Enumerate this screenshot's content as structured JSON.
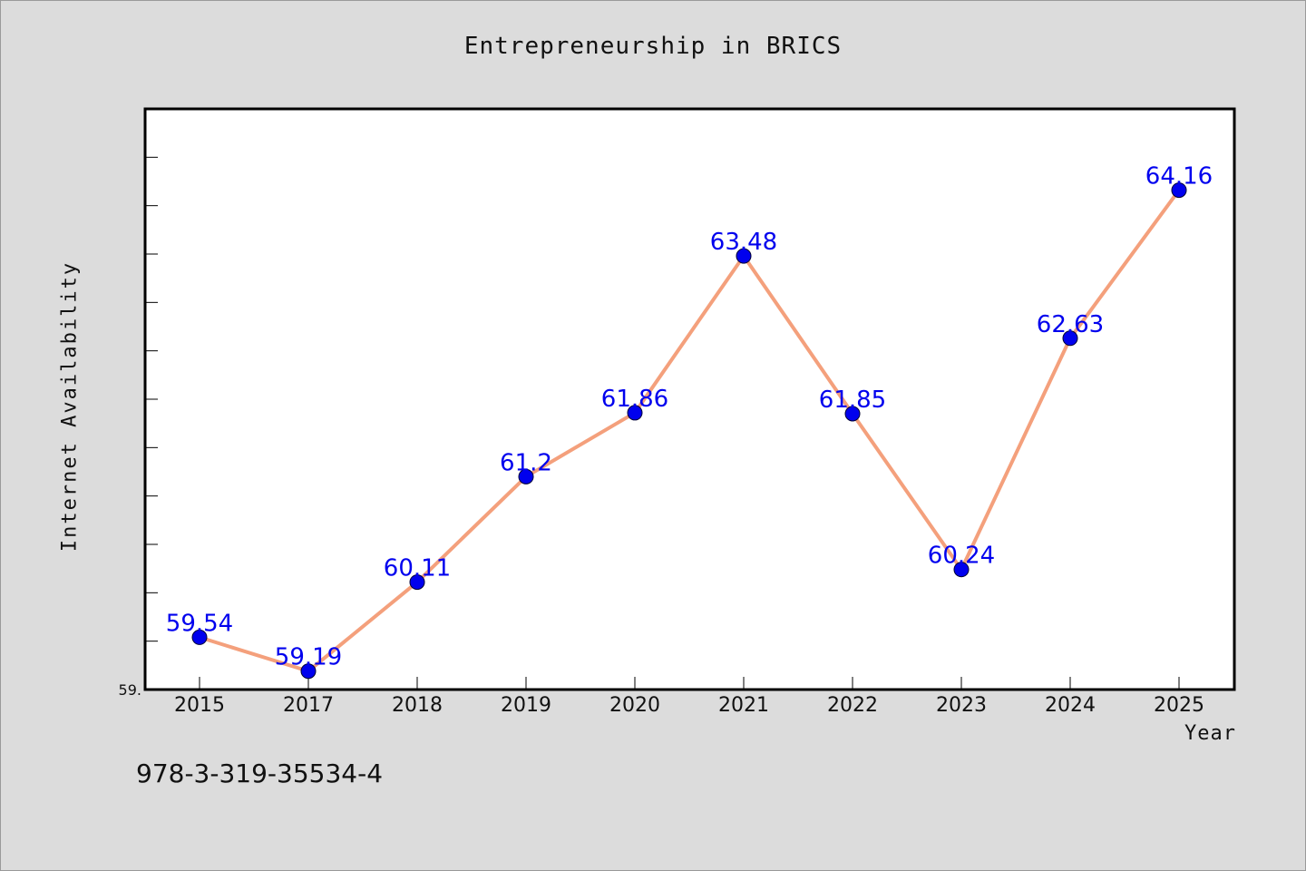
{
  "chart_data": {
    "type": "line",
    "title": "Entrepreneurship in BRICS",
    "xlabel": "Year",
    "ylabel": "Internet Availability",
    "categories": [
      "2015",
      "2017",
      "2018",
      "2019",
      "2020",
      "2021",
      "2022",
      "2023",
      "2024",
      "2025"
    ],
    "series": [
      {
        "values": [
          59.54,
          59.19,
          60.11,
          61.2,
          61.86,
          63.48,
          61.85,
          60.24,
          62.63,
          64.16
        ],
        "line_color": "#f4a07c",
        "marker_color": "#0000ee"
      }
    ],
    "ylim": [
      59.0,
      65.0
    ],
    "y_min_label": "59.",
    "data_labels": [
      "59.54",
      "59.19",
      "60.11",
      "61.2",
      "61.86",
      "63.48",
      "61.85",
      "60.24",
      "62.63",
      "64.16"
    ],
    "grid": false,
    "legend": "none"
  },
  "footnote": "978-3-319-35534-4",
  "colors": {
    "background": "#dcdcdc",
    "plot_background": "#ffffff",
    "line": "#f4a07c",
    "marker": "#0000ee"
  }
}
